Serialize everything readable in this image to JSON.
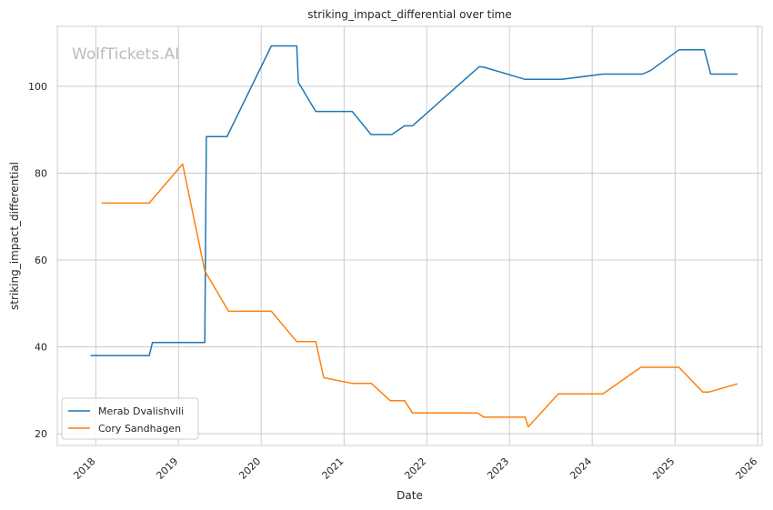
{
  "chart_data": {
    "type": "line",
    "title": "striking_impact_differential over time",
    "xlabel": "Date",
    "ylabel": "striking_impact_differential",
    "watermark": "WolfTickets.AI",
    "x_ticks": [
      "2018",
      "2019",
      "2020",
      "2021",
      "2022",
      "2023",
      "2024",
      "2025",
      "2026"
    ],
    "y_ticks": [
      20,
      40,
      60,
      80,
      100
    ],
    "xlim": [
      "2017-07-15",
      "2026-01-20"
    ],
    "ylim": [
      17.3,
      113.8
    ],
    "grid": true,
    "legend_position": "lower-left",
    "series": [
      {
        "name": "Merab Dvalishvili",
        "color": "#1f77b4",
        "points": [
          [
            "2017-12-09",
            38.0
          ],
          [
            "2018-08-25",
            38.0
          ],
          [
            "2018-09-08",
            41.0
          ],
          [
            "2019-04-27",
            41.0
          ],
          [
            "2019-05-04",
            88.4
          ],
          [
            "2019-08-03",
            88.4
          ],
          [
            "2020-02-15",
            109.3
          ],
          [
            "2020-06-06",
            109.3
          ],
          [
            "2020-06-13",
            100.9
          ],
          [
            "2020-08-29",
            94.2
          ],
          [
            "2021-02-06",
            94.2
          ],
          [
            "2021-04-30",
            88.9
          ],
          [
            "2021-07-31",
            88.9
          ],
          [
            "2021-09-25",
            90.9
          ],
          [
            "2021-10-30",
            90.9
          ],
          [
            "2022-08-20",
            104.5
          ],
          [
            "2022-09-10",
            104.4
          ],
          [
            "2023-03-11",
            101.6
          ],
          [
            "2023-08-19",
            101.6
          ],
          [
            "2024-02-17",
            102.8
          ],
          [
            "2024-08-10",
            102.8
          ],
          [
            "2024-09-14",
            103.6
          ],
          [
            "2025-01-18",
            108.4
          ],
          [
            "2025-05-10",
            108.4
          ],
          [
            "2025-06-07",
            102.8
          ],
          [
            "2025-10-04",
            102.8
          ]
        ]
      },
      {
        "name": "Cory Sandhagen",
        "color": "#ff7f0e",
        "points": [
          [
            "2018-01-27",
            73.1
          ],
          [
            "2018-08-25",
            73.1
          ],
          [
            "2019-01-19",
            82.1
          ],
          [
            "2019-04-27",
            57.5
          ],
          [
            "2019-08-10",
            48.2
          ],
          [
            "2020-02-15",
            48.2
          ],
          [
            "2020-06-06",
            41.2
          ],
          [
            "2020-08-29",
            41.2
          ],
          [
            "2020-10-03",
            32.9
          ],
          [
            "2021-02-06",
            31.6
          ],
          [
            "2021-05-01",
            31.6
          ],
          [
            "2021-07-24",
            27.6
          ],
          [
            "2021-09-25",
            27.6
          ],
          [
            "2021-10-30",
            24.8
          ],
          [
            "2022-08-13",
            24.8
          ],
          [
            "2022-09-10",
            23.8
          ],
          [
            "2023-03-11",
            23.8
          ],
          [
            "2023-03-25",
            21.6
          ],
          [
            "2023-08-05",
            29.2
          ],
          [
            "2024-02-17",
            29.2
          ],
          [
            "2024-08-03",
            35.3
          ],
          [
            "2025-01-18",
            35.3
          ],
          [
            "2025-05-03",
            29.6
          ],
          [
            "2025-05-31",
            29.6
          ],
          [
            "2025-10-04",
            31.5
          ]
        ]
      }
    ]
  }
}
